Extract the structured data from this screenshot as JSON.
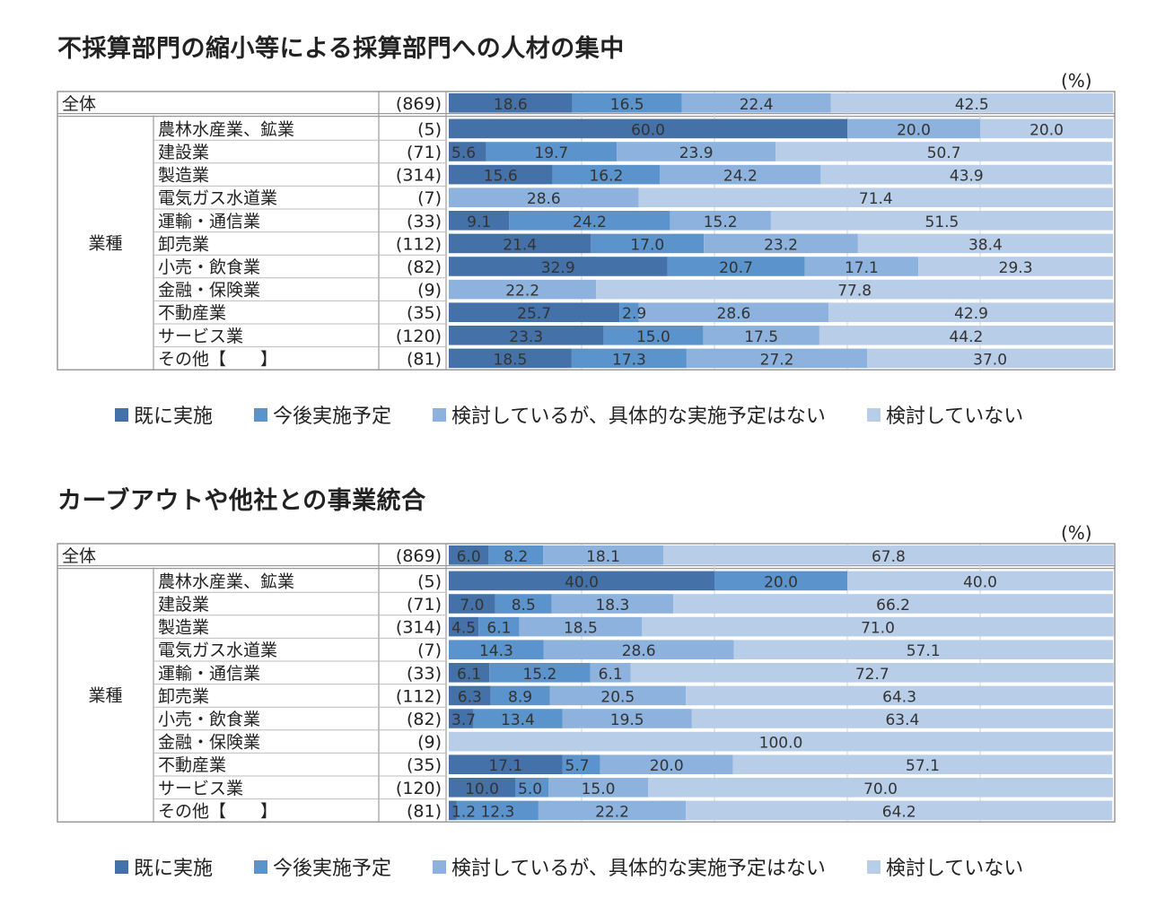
{
  "colors": [
    "#4472a8",
    "#5b93cc",
    "#8cb2dd",
    "#b8cde8"
  ],
  "legend": [
    "既に実施",
    "今後実施予定",
    "検討しているが、具体的な実施予定はない",
    "検討していない"
  ],
  "chart_data": [
    {
      "type": "bar",
      "orientation": "horizontal-stacked-100",
      "title": "不採算部門の縮小等による採算部門への人材の集中",
      "unit": "(%)",
      "group_label": "業種",
      "rows": [
        {
          "label": "全体",
          "n": "(869)",
          "values": [
            18.6,
            16.5,
            22.4,
            42.5
          ]
        },
        {
          "label": "農林水産業、鉱業",
          "n": "(5)",
          "values": [
            60.0,
            0,
            20.0,
            20.0
          ]
        },
        {
          "label": "建設業",
          "n": "(71)",
          "values": [
            5.6,
            19.7,
            23.9,
            50.7
          ]
        },
        {
          "label": "製造業",
          "n": "(314)",
          "values": [
            15.6,
            16.2,
            24.2,
            43.9
          ]
        },
        {
          "label": "電気ガス水道業",
          "n": "(7)",
          "values": [
            0,
            0,
            28.6,
            71.4
          ]
        },
        {
          "label": "運輸・通信業",
          "n": "(33)",
          "values": [
            9.1,
            24.2,
            15.2,
            51.5
          ]
        },
        {
          "label": "卸売業",
          "n": "(112)",
          "values": [
            21.4,
            17.0,
            23.2,
            38.4
          ]
        },
        {
          "label": "小売・飲食業",
          "n": "(82)",
          "values": [
            32.9,
            20.7,
            17.1,
            29.3
          ]
        },
        {
          "label": "金融・保険業",
          "n": "(9)",
          "values": [
            0,
            0,
            22.2,
            77.8
          ]
        },
        {
          "label": "不動産業",
          "n": "(35)",
          "values": [
            25.7,
            2.9,
            28.6,
            42.9
          ]
        },
        {
          "label": "サービス業",
          "n": "(120)",
          "values": [
            23.3,
            15.0,
            17.5,
            44.2
          ]
        },
        {
          "label": "その他【　　】",
          "n": "(81)",
          "values": [
            18.5,
            17.3,
            27.2,
            37.0
          ]
        }
      ]
    },
    {
      "type": "bar",
      "orientation": "horizontal-stacked-100",
      "title": "カーブアウトや他社との事業統合",
      "unit": "(%)",
      "group_label": "業種",
      "rows": [
        {
          "label": "全体",
          "n": "(869)",
          "values": [
            6.0,
            8.2,
            18.1,
            67.8
          ]
        },
        {
          "label": "農林水産業、鉱業",
          "n": "(5)",
          "values": [
            40.0,
            20.0,
            0,
            40.0
          ]
        },
        {
          "label": "建設業",
          "n": "(71)",
          "values": [
            7.0,
            8.5,
            18.3,
            66.2
          ]
        },
        {
          "label": "製造業",
          "n": "(314)",
          "values": [
            4.5,
            6.1,
            18.5,
            71.0
          ]
        },
        {
          "label": "電気ガス水道業",
          "n": "(7)",
          "values": [
            0,
            14.3,
            28.6,
            57.1
          ]
        },
        {
          "label": "運輸・通信業",
          "n": "(33)",
          "values": [
            6.1,
            15.2,
            6.1,
            72.7
          ]
        },
        {
          "label": "卸売業",
          "n": "(112)",
          "values": [
            6.3,
            8.9,
            20.5,
            64.3
          ]
        },
        {
          "label": "小売・飲食業",
          "n": "(82)",
          "values": [
            3.7,
            13.4,
            19.5,
            63.4
          ]
        },
        {
          "label": "金融・保険業",
          "n": "(9)",
          "values": [
            0,
            0,
            0,
            100.0
          ]
        },
        {
          "label": "不動産業",
          "n": "(35)",
          "values": [
            17.1,
            5.7,
            20.0,
            57.1
          ]
        },
        {
          "label": "サービス業",
          "n": "(120)",
          "values": [
            10.0,
            5.0,
            15.0,
            70.0
          ]
        },
        {
          "label": "その他【　　】",
          "n": "(81)",
          "values": [
            1.2,
            12.3,
            22.2,
            64.2
          ]
        }
      ]
    }
  ]
}
